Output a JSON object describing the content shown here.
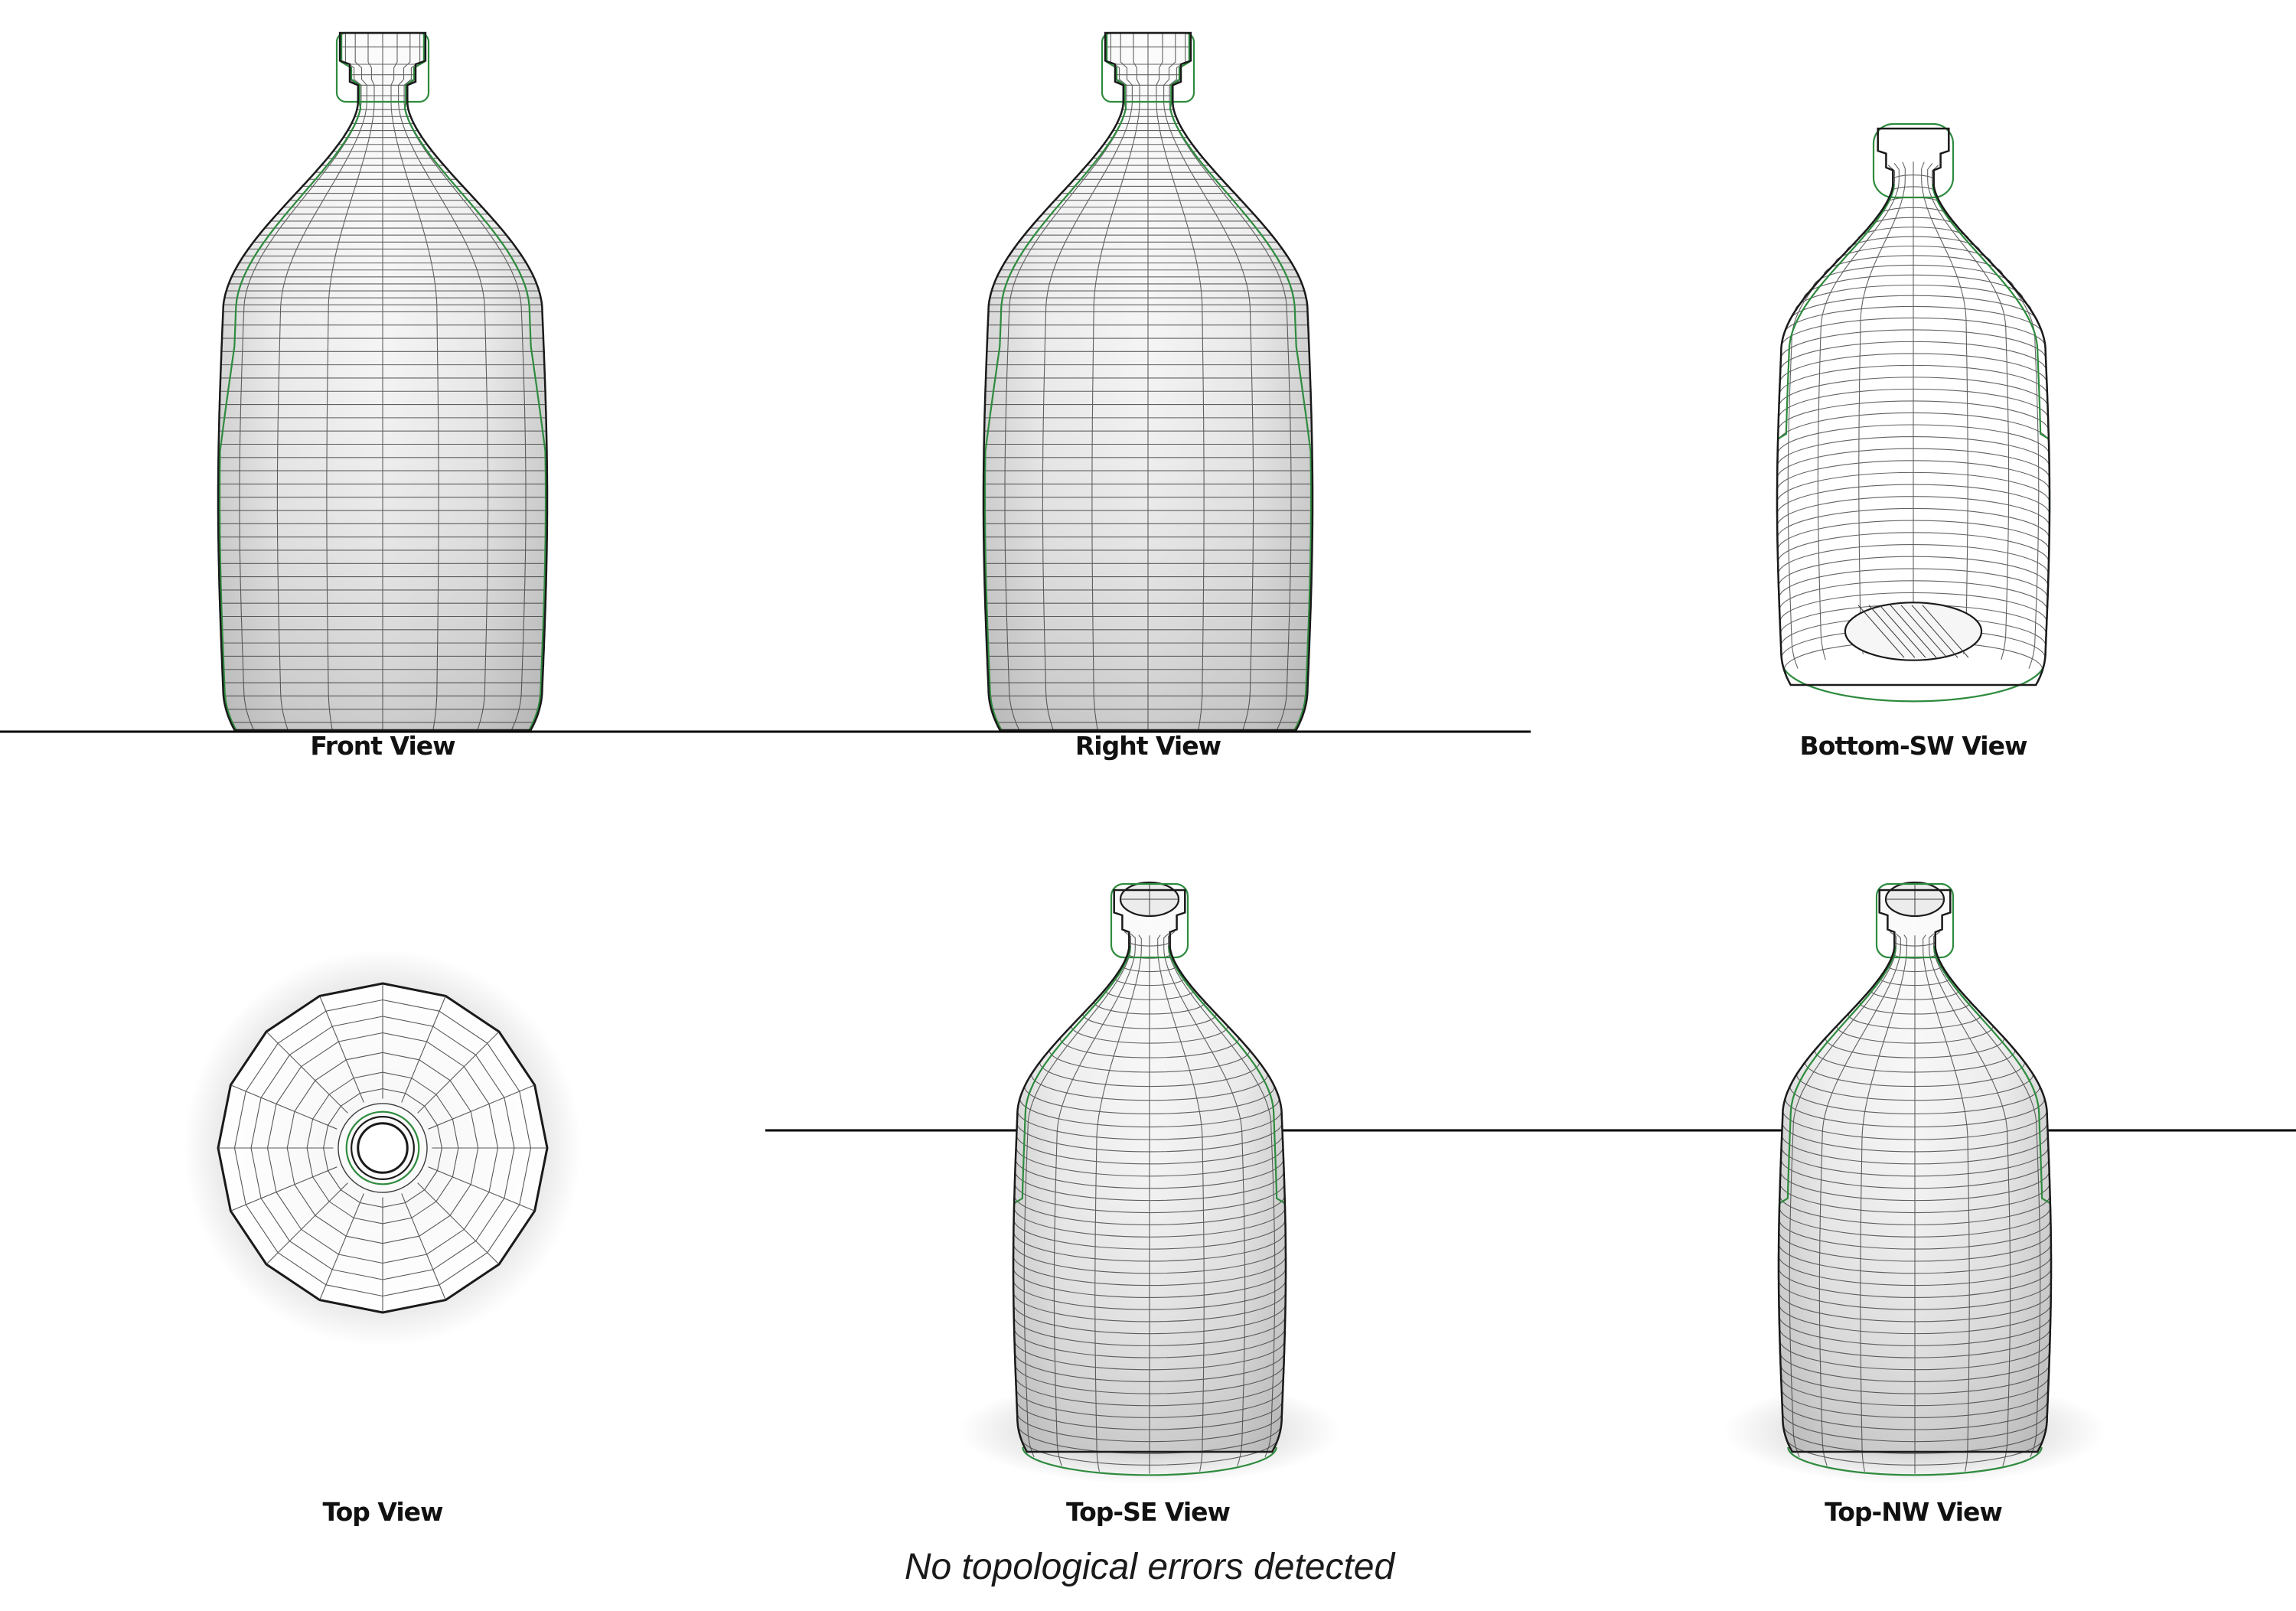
{
  "views": [
    {
      "id": "front",
      "label": "Front View"
    },
    {
      "id": "right",
      "label": "Right View"
    },
    {
      "id": "bottom_sw",
      "label": "Bottom-SW View"
    },
    {
      "id": "top",
      "label": "Top View"
    },
    {
      "id": "top_se",
      "label": "Top-SE View"
    },
    {
      "id": "top_nw",
      "label": "Top-NW View"
    }
  ],
  "status_message": "No topological errors detected",
  "colors": {
    "outline": "#1a1a1a",
    "wire": "#3c3c3c",
    "silhouette_green": "#2e8b3e",
    "shade_light": "#ffffff",
    "shade_dark": "#bdbdbd",
    "ground": "#000000"
  },
  "icons": [
    "bottle-mesh-render"
  ]
}
